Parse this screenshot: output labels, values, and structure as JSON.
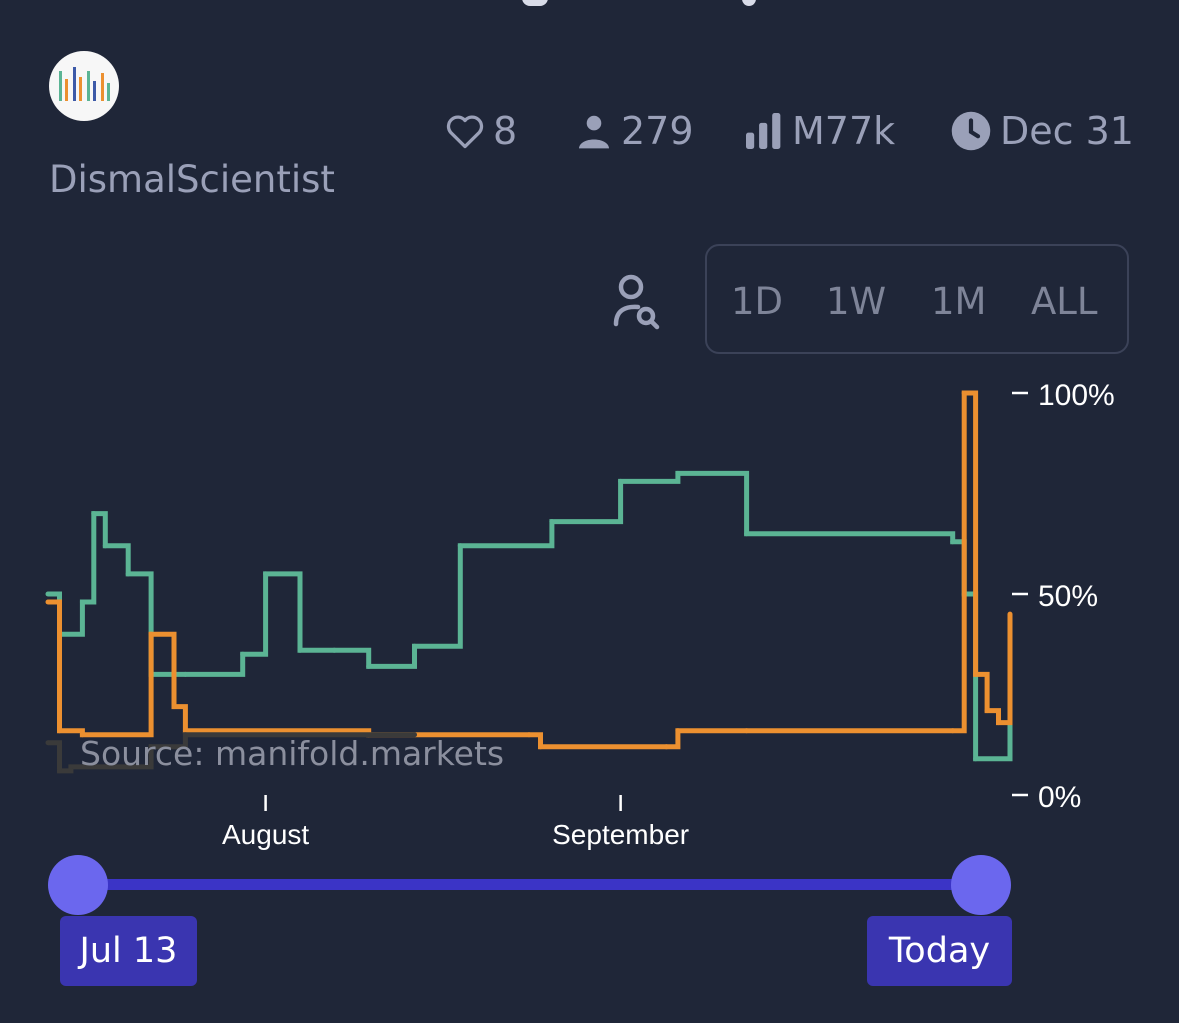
{
  "creator": {
    "name": "DismalScientist"
  },
  "stats": {
    "likes": "8",
    "traders": "279",
    "volume": "M77k",
    "close_date": "Dec 31"
  },
  "range_buttons": [
    "1D",
    "1W",
    "1M",
    "ALL"
  ],
  "watermark": "Source: manifold.markets",
  "slider": {
    "start_label": "Jul 13",
    "end_label": "Today"
  },
  "colors": {
    "background": "#1f2638",
    "series_green": "#5bb494",
    "series_orange": "#ec9030",
    "series_gray": "#3a3a3a",
    "slider_accent": "#6b67ee",
    "slider_label_bg": "#3a35b0"
  },
  "icons": [
    "heart-icon",
    "user-icon",
    "bar-chart-icon",
    "clock-icon",
    "user-search-icon"
  ],
  "chart_data": {
    "type": "line",
    "step": true,
    "x_tick_labels": [
      "August",
      "September"
    ],
    "y_tick_labels": [
      "100%",
      "50%",
      "0%"
    ],
    "ylim": [
      0,
      100
    ],
    "xlim": [
      "Jul 13",
      "Oct 5"
    ],
    "series": [
      {
        "color": "#5bb494",
        "x": [
          "Jul 13",
          "Jul 14",
          "Jul 16",
          "Jul 17",
          "Jul 18",
          "Jul 20",
          "Jul 22",
          "Jul 25",
          "Jul 30",
          "Aug 1",
          "Aug 4",
          "Aug 7",
          "Aug 10",
          "Aug 14",
          "Aug 18",
          "Aug 26",
          "Sep 1",
          "Sep 6",
          "Sep 12",
          "Sep 30",
          "Oct 1",
          "Oct 2",
          "Oct 5"
        ],
        "y": [
          50,
          40,
          48,
          70,
          62,
          55,
          30,
          30,
          35,
          55,
          36,
          36,
          32,
          37,
          62,
          68,
          78,
          80,
          65,
          63,
          50,
          9,
          23
        ]
      },
      {
        "color": "#ec9030",
        "x": [
          "Jul 13",
          "Jul 14",
          "Jul 16",
          "Jul 22",
          "Jul 24",
          "Jul 25",
          "Aug 10",
          "Aug 24",
          "Aug 25",
          "Sep 5",
          "Sep 6",
          "Sep 12",
          "Sep 30",
          "Oct 1",
          "Oct 2",
          "Oct 3",
          "Oct 4",
          "Oct 5"
        ],
        "y": [
          48,
          16,
          15,
          40,
          22,
          16,
          15,
          15,
          12,
          12,
          16,
          16,
          16,
          100,
          30,
          21,
          18,
          45
        ]
      },
      {
        "color": "#3a3a3a",
        "x": [
          "Jul 13",
          "Jul 14",
          "Jul 15",
          "Jul 22",
          "Jul 25",
          "Aug 14"
        ],
        "y": [
          13,
          6,
          7,
          12,
          15,
          15
        ]
      }
    ]
  }
}
